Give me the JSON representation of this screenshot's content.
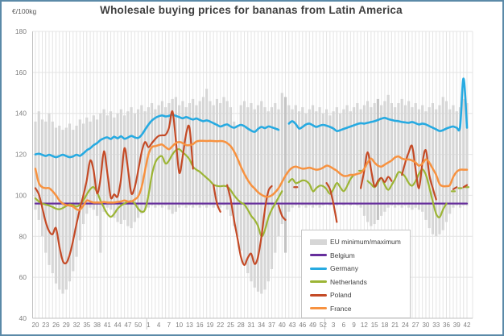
{
  "window": {
    "title": "Wholesale buying prices for bananas from Latin America",
    "unit_label": "€/100kg"
  },
  "chart_data": {
    "type": "line",
    "title": "Wholesale buying prices for bananas from Latin America",
    "ylabel": "€/100kg",
    "ylim": [
      40,
      180
    ],
    "y_ticks": [
      180,
      160,
      140,
      120,
      100,
      80,
      60,
      40
    ],
    "x_axis_note": "ISO week numbers over ~2.5 years, weekly points, labels every 3rd week",
    "x_tick_labels": [
      "20",
      "23",
      "26",
      "29",
      "32",
      "35",
      "38",
      "41",
      "44",
      "47",
      "50",
      "1",
      "4",
      "7",
      "10",
      "13",
      "16",
      "19",
      "22",
      "25",
      "28",
      "31",
      "34",
      "37",
      "40",
      "43",
      "46",
      "49",
      "52",
      "3",
      "6",
      "9",
      "12",
      "15",
      "18",
      "21",
      "24",
      "27",
      "30",
      "33",
      "36",
      "39",
      "42"
    ],
    "weeks_total": 127,
    "grid": true,
    "legend_position": "bottom-right overlay box",
    "band": {
      "name": "EU minimum/maximum",
      "color": "#d6d6d6",
      "highlight_color": "#c3c3c3",
      "highlight_weeks": [
        73,
        100
      ],
      "max": [
        136,
        141,
        137,
        136,
        140,
        136,
        133,
        134,
        132,
        133,
        135,
        132,
        134,
        137,
        135,
        138,
        136,
        139,
        137,
        140,
        142,
        139,
        141,
        138,
        140,
        142,
        139,
        141,
        143,
        140,
        142,
        144,
        141,
        143,
        145,
        142,
        144,
        146,
        143,
        145,
        147,
        148,
        144,
        146,
        143,
        145,
        147,
        144,
        146,
        148,
        152,
        146,
        144,
        147,
        145,
        148,
        146,
        143,
        136,
        134,
        144,
        146,
        143,
        145,
        142,
        144,
        146,
        143,
        141,
        143,
        145,
        142,
        150,
        148,
        144,
        142,
        144,
        141,
        143,
        140,
        142,
        144,
        141,
        143,
        140,
        142,
        139,
        141,
        143,
        140,
        142,
        144,
        141,
        143,
        145,
        142,
        144,
        146,
        143,
        145,
        147,
        144,
        146,
        149,
        145,
        143,
        145,
        147,
        144,
        146,
        143,
        145,
        142,
        144,
        141,
        143,
        145,
        142,
        144,
        148,
        146,
        142,
        144,
        141,
        143,
        147,
        145
      ],
      "min": [
        93,
        88,
        80,
        72,
        66,
        62,
        57,
        54,
        52,
        54,
        58,
        63,
        70,
        78,
        86,
        91,
        94,
        93,
        90,
        72,
        92,
        94,
        93,
        89,
        87,
        86,
        88,
        85,
        84,
        87,
        89,
        91,
        93,
        94,
        95,
        94,
        95,
        94,
        95,
        93,
        91,
        92,
        94,
        95,
        94,
        95,
        94,
        95,
        94,
        95,
        94,
        95,
        94,
        95,
        94,
        95,
        93,
        90,
        85,
        80,
        73,
        67,
        62,
        58,
        55,
        53,
        52,
        54,
        58,
        64,
        72,
        80,
        86,
        72,
        92,
        94,
        95,
        94,
        95,
        94,
        95,
        94,
        95,
        94,
        95,
        96,
        95,
        96,
        95,
        96,
        95,
        96,
        95,
        96,
        95,
        94,
        90,
        87,
        85,
        86,
        88,
        90,
        92,
        94,
        95,
        94,
        95,
        94,
        95,
        94,
        93,
        94,
        93,
        92,
        88,
        84,
        81,
        80,
        81,
        83,
        87,
        91,
        94,
        95,
        94,
        95,
        95
      ]
    },
    "series": [
      {
        "name": "Belgium",
        "color": "#662e9c",
        "width": 2.2,
        "constant": 96
      },
      {
        "name": "Germany",
        "color": "#27aae1",
        "width": 2.6,
        "values": [
          120,
          120.3,
          119.8,
          119.2,
          119.8,
          119.2,
          118.6,
          119.2,
          119.8,
          119.2,
          118.6,
          119,
          119.8,
          119.3,
          120.5,
          122,
          123,
          124.5,
          125.5,
          127,
          127.8,
          128.3,
          127.5,
          128.6,
          127.8,
          128.8,
          127.6,
          128.2,
          129,
          128.3,
          128,
          129.5,
          132,
          134.5,
          136.5,
          137.8,
          138.6,
          139,
          138.5,
          138.8,
          139.3,
          138.8,
          138.2,
          137.6,
          138.2,
          137.6,
          137,
          137.5,
          136.8,
          136.2,
          136.6,
          136,
          135.2,
          134.4,
          133.6,
          134.2,
          134.6,
          133.6,
          133,
          133.8,
          134.4,
          133.8,
          132.6,
          131.6,
          131,
          132.4,
          133.4,
          132.8,
          133.6,
          133.2,
          132.6,
          132,
          null,
          null,
          135,
          136.2,
          134.8,
          132.6,
          133.4,
          134.6,
          135,
          134.2,
          133.4,
          134,
          134.4,
          134,
          133.4,
          132.6,
          131.4,
          131.8,
          132.4,
          133,
          133.6,
          134.2,
          134.8,
          135.2,
          135,
          135.4,
          135.8,
          136.2,
          136.8,
          137.4,
          137.8,
          137.2,
          136.8,
          136.4,
          136.2,
          135.8,
          135.6,
          135.4,
          135.8,
          135.2,
          134.6,
          135,
          134.6,
          133.8,
          133,
          132.2,
          131.4,
          131.8,
          132.6,
          133.2,
          133.6,
          133,
          133.6,
          157,
          133
        ]
      },
      {
        "name": "Netherlands",
        "color": "#9cb535",
        "width": 2.2,
        "values": [
          98.5,
          97,
          96,
          95.5,
          95,
          94.3,
          93.5,
          93.2,
          93.8,
          94.8,
          95.5,
          95.2,
          94.5,
          95.5,
          97.5,
          100.5,
          103,
          104,
          101.5,
          97.5,
          94,
          91,
          89.5,
          91,
          93.5,
          95,
          96,
          96.8,
          97.2,
          96,
          93.5,
          92,
          93,
          100,
          110,
          116,
          118.5,
          119,
          115.5,
          117,
          120,
          122,
          122.5,
          121,
          119.5,
          117.5,
          114,
          112.5,
          111.5,
          110,
          108.5,
          107,
          105.2,
          104.6,
          104.4,
          104.6,
          104.2,
          102.5,
          100,
          98,
          96.5,
          95.5,
          93,
          90,
          88,
          85,
          80,
          83,
          89,
          93,
          96,
          99,
          102,
          null,
          106.5,
          108,
          106,
          106.5,
          107.3,
          107,
          105.5,
          102,
          103.5,
          104.7,
          104.5,
          103,
          100.7,
          103,
          106,
          104,
          102,
          104.5,
          108,
          110,
          null,
          112,
          null,
          107,
          105.5,
          104,
          106,
          108.5,
          105,
          102.7,
          105,
          108,
          111.3,
          110.7,
          109,
          106,
          104.7,
          107,
          110.5,
          112.7,
          110,
          104,
          97,
          91,
          89.3,
          93,
          96,
          null,
          102,
          null,
          103.5,
          null,
          104
        ]
      },
      {
        "name": "Poland",
        "color": "#c44a26",
        "width": 2.2,
        "values": [
          103.5,
          100.5,
          94,
          87,
          82.5,
          81,
          84,
          75,
          68,
          67,
          71,
          78,
          86,
          93.5,
          100,
          107.5,
          117,
          112,
          101,
          108,
          121.5,
          111,
          99,
          100.5,
          99.5,
          108,
          123,
          113,
          101,
          104,
          112,
          121,
          126,
          123.5,
          125.5,
          127.5,
          129,
          129.3,
          129.6,
          133,
          141,
          127,
          111,
          119,
          130,
          133,
          113,
          null,
          null,
          null,
          null,
          null,
          105,
          96,
          92,
          null,
          105,
          98,
          88,
          79,
          70,
          66,
          69.5,
          71.5,
          66.5,
          70,
          80,
          93,
          102,
          104.5,
          null,
          95,
          90,
          88,
          null,
          null,
          104,
          null,
          null,
          null,
          null,
          null,
          null,
          null,
          null,
          106,
          103,
          96,
          87,
          null,
          null,
          null,
          null,
          null,
          null,
          103.5,
          112,
          121,
          112.5,
          104.5,
          107,
          108.5,
          106.5,
          109,
          107,
          null,
          null,
          110,
          116,
          121,
          124,
          112.5,
          103.5,
          116,
          122,
          110,
          103.5,
          98,
          null,
          null,
          null,
          null,
          103,
          104,
          null,
          104,
          105
        ]
      },
      {
        "name": "France",
        "color": "#f79240",
        "width": 2.5,
        "values": [
          113,
          106,
          104,
          103.5,
          103.5,
          102,
          100,
          97.5,
          96,
          95.2,
          95,
          94.5,
          93.2,
          93,
          95,
          97.5,
          97,
          96.5,
          96.5,
          96.5,
          96.8,
          96.5,
          96.5,
          96.5,
          96.8,
          97,
          97.5,
          97,
          97,
          98,
          99.5,
          104,
          112,
          120,
          123.5,
          124,
          124.5,
          124.8,
          123.5,
          122.5,
          124,
          125.5,
          126,
          125.5,
          124.5,
          124.5,
          125,
          126.3,
          126.6,
          126.6,
          126.5,
          126.6,
          126.5,
          126.4,
          126.5,
          126.3,
          125.5,
          124,
          121.5,
          118,
          114,
          110.5,
          107.5,
          105,
          103.3,
          101.5,
          100.3,
          99.5,
          99.3,
          100,
          101.5,
          103.5,
          106.5,
          109.5,
          112,
          113.5,
          114,
          113.5,
          113,
          113.2,
          113.5,
          113,
          112.5,
          112.8,
          113.5,
          114.5,
          114,
          113,
          112,
          110.5,
          109.5,
          109.5,
          110,
          110,
          110.5,
          111,
          113,
          116,
          118,
          116,
          114.5,
          114,
          115,
          116,
          117,
          118.5,
          119,
          118,
          117.5,
          117.5,
          117,
          116,
          114.5,
          115.5,
          117.5,
          116,
          113,
          110,
          105.5,
          104.5,
          104.5,
          105,
          109,
          111.5,
          112.5,
          112.5,
          112.5,
          113
        ]
      }
    ],
    "legend_entries": [
      "EU minimum/maximum",
      "Belgium",
      "Germany",
      "Netherlands",
      "Poland",
      "France"
    ]
  },
  "style": {
    "grid_color": "#e4e4e4",
    "axis_color": "#c0c0c0",
    "tick_label_color": "#7f7f7f",
    "separator_color": "#c9c9c9"
  }
}
